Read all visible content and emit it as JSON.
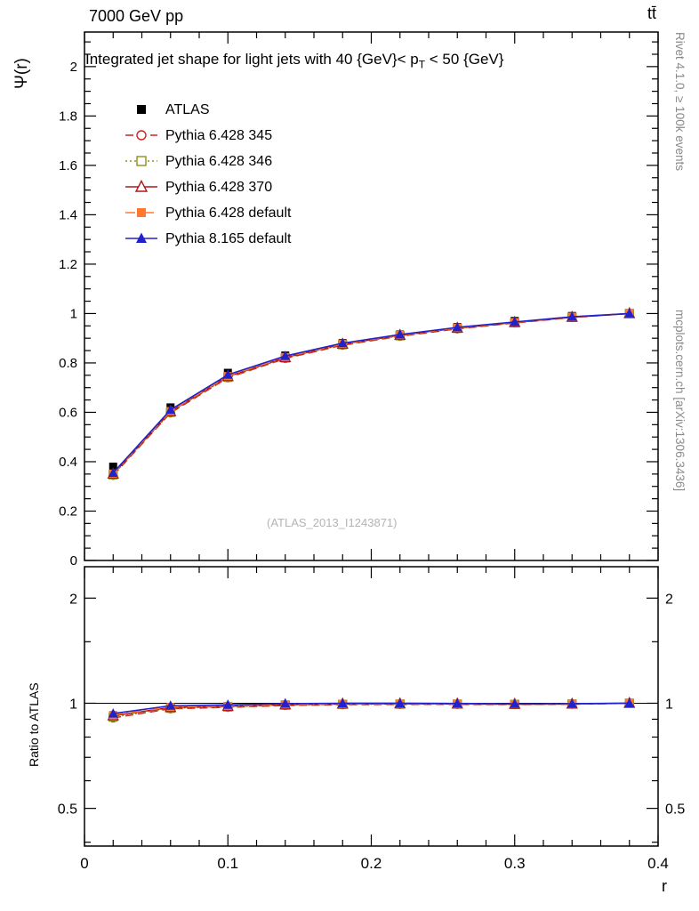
{
  "page": {
    "header_left": "7000 GeV pp",
    "header_right": "tt̄",
    "watermark": "(ATLAS_2013_I1243871)",
    "side_top": "Rivet 4.1.0, ≥ 100k events",
    "side_bottom": "mcplots.cern.ch [arXiv:1306.3436]"
  },
  "chart_data": {
    "type": "line",
    "title": "Integrated jet shape for light jets with 40 {GeV}< pT < 50 {GeV}",
    "title_parts": {
      "prefix": "Integrated jet shape for light jets with 40 {GeV}< p",
      "sub": "T",
      "suffix": " < 50 {GeV}"
    },
    "xlabel": "r",
    "ylabel": "Ψ(r)",
    "ratio_label": "Ratio to ATLAS",
    "xlim": [
      0,
      0.4
    ],
    "ylim_main": [
      0,
      2.14
    ],
    "ylim_ratio": [
      0.39,
      2.46
    ],
    "ratio_log": true,
    "grid": false,
    "legend_position": "top-left",
    "x": [
      0.02,
      0.06,
      0.1,
      0.14,
      0.18,
      0.22,
      0.26,
      0.3,
      0.34,
      0.38
    ],
    "series": [
      {
        "name": "ATLAS",
        "color": "#000000",
        "line": "none",
        "marker": "square-filled",
        "values": [
          0.38,
          0.62,
          0.76,
          0.83,
          0.88,
          0.915,
          0.945,
          0.97,
          0.99,
          1.0
        ]
      },
      {
        "name": "Pythia 6.428 345",
        "color": "#cc2222",
        "line": "dashed",
        "marker": "circle-open",
        "values": [
          0.345,
          0.598,
          0.74,
          0.818,
          0.872,
          0.908,
          0.938,
          0.962,
          0.984,
          1.0
        ]
      },
      {
        "name": "Pythia 6.428 346",
        "color": "#8f8f20",
        "line": "dotted",
        "marker": "square-open",
        "values": [
          0.347,
          0.6,
          0.742,
          0.82,
          0.874,
          0.91,
          0.94,
          0.963,
          0.985,
          1.0
        ]
      },
      {
        "name": "Pythia 6.428 370",
        "color": "#b01818",
        "line": "solid",
        "marker": "triangle-open",
        "values": [
          0.35,
          0.603,
          0.745,
          0.822,
          0.876,
          0.912,
          0.941,
          0.964,
          0.985,
          1.0
        ]
      },
      {
        "name": "Pythia 6.428 default",
        "color": "#ff7733",
        "line": "dashdot",
        "marker": "square-filled",
        "values": [
          0.352,
          0.605,
          0.747,
          0.824,
          0.877,
          0.913,
          0.942,
          0.965,
          0.986,
          1.0
        ]
      },
      {
        "name": "Pythia 8.165 default",
        "color": "#2222cc",
        "line": "solid",
        "marker": "triangle-filled",
        "values": [
          0.355,
          0.61,
          0.752,
          0.828,
          0.88,
          0.915,
          0.944,
          0.966,
          0.987,
          1.0
        ]
      }
    ],
    "axes": {
      "x_majors": [
        0,
        0.1,
        0.2,
        0.3,
        0.4
      ],
      "x_minor_step": 0.02,
      "y_major_step": 0.2,
      "y_minor_step": 0.05,
      "ratio_majors": [
        0.5,
        1,
        2
      ],
      "ratio_minors": [
        0.4,
        0.6,
        0.7,
        0.8,
        0.9,
        1.5,
        2
      ]
    }
  }
}
